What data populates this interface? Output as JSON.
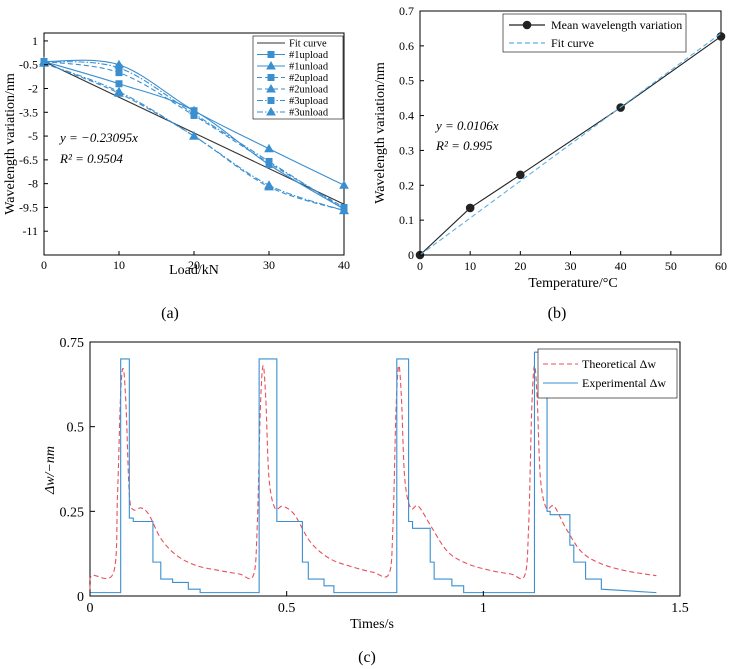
{
  "chart_data": [
    {
      "type": "line",
      "panel_label": "(a)",
      "xlabel": "Load/kN",
      "ylabel": "Wavelength variation/nm",
      "xlim": [
        0,
        40
      ],
      "ylim": [
        -12.5,
        1.5
      ],
      "x_ticks": [
        0,
        10,
        20,
        30,
        40
      ],
      "y_ticks": [
        1,
        -0.5,
        -2,
        -3.5,
        -5,
        -6.5,
        -8,
        -9.5,
        -11
      ],
      "y_tick_labels": [
        "1",
        "-0.5",
        "-2",
        "-3.5",
        "-5",
        "-6.5",
        "-8",
        "-9.5",
        "-11"
      ],
      "annotation_equation": "y = −0.23095x",
      "annotation_r2": "R² = 0.9504",
      "series": [
        {
          "name": "Fit curve",
          "style": "solid",
          "marker": "none",
          "color": "#333333",
          "x": [
            0,
            40
          ],
          "y": [
            -0.3,
            -9.3
          ]
        },
        {
          "name": "#1upload",
          "style": "solid",
          "marker": "square",
          "color": "#3a8fd0",
          "x": [
            0,
            10,
            20,
            30,
            40
          ],
          "y": [
            -0.3,
            -1.7,
            -3.4,
            -6.8,
            -9.6
          ]
        },
        {
          "name": "#1unload",
          "style": "solid",
          "marker": "triangle",
          "color": "#3a8fd0",
          "x": [
            0,
            10,
            20,
            30,
            40
          ],
          "y": [
            -0.3,
            -0.5,
            -3.4,
            -5.8,
            -8.1
          ]
        },
        {
          "name": "#2upload",
          "style": "dash",
          "marker": "square",
          "color": "#3a8fd0",
          "x": [
            0,
            10,
            20,
            30,
            40
          ],
          "y": [
            -0.3,
            -1.0,
            -3.7,
            -6.7,
            -9.5
          ]
        },
        {
          "name": "#2unload",
          "style": "dash",
          "marker": "triangle",
          "color": "#3a8fd0",
          "x": [
            0,
            10,
            20,
            30,
            40
          ],
          "y": [
            -0.4,
            -2.3,
            -5.0,
            -8.2,
            -9.7
          ]
        },
        {
          "name": "#3upload",
          "style": "dashdot",
          "marker": "square",
          "color": "#3a8fd0",
          "x": [
            0,
            10,
            20,
            30,
            40
          ],
          "y": [
            -0.3,
            -0.7,
            -3.6,
            -6.6,
            -9.6
          ]
        },
        {
          "name": "#3unload",
          "style": "dashdot",
          "marker": "triangle",
          "color": "#3a8fd0",
          "x": [
            0,
            10,
            20,
            30,
            40
          ],
          "y": [
            -0.4,
            -2.2,
            -5.0,
            -8.1,
            -9.7
          ]
        }
      ]
    },
    {
      "type": "line",
      "panel_label": "(b)",
      "xlabel": "Temperature/°C",
      "ylabel": "Wavelength variation/nm",
      "xlim": [
        0,
        60
      ],
      "ylim": [
        0,
        0.7
      ],
      "x_ticks": [
        0,
        10,
        20,
        30,
        40,
        50,
        60
      ],
      "y_ticks": [
        0,
        0.1,
        0.2,
        0.3,
        0.4,
        0.5,
        0.6,
        0.7
      ],
      "annotation_equation": "y = 0.0106x",
      "annotation_r2": "R² = 0.995",
      "series": [
        {
          "name": "Mean wavelength variation",
          "style": "solid",
          "marker": "circle",
          "color": "#222222",
          "x": [
            0,
            10,
            20,
            40,
            60
          ],
          "y": [
            0,
            0.135,
            0.23,
            0.423,
            0.627
          ]
        },
        {
          "name": "Fit curve",
          "style": "dash",
          "marker": "none",
          "color": "#5ab1e6",
          "x": [
            0,
            60
          ],
          "y": [
            0,
            0.636
          ]
        }
      ]
    },
    {
      "type": "line",
      "panel_label": "(c)",
      "xlabel": "Times/s",
      "ylabel": "Δw/−nm",
      "xlim": [
        0,
        1.5
      ],
      "ylim": [
        0,
        0.75
      ],
      "x_ticks": [
        0,
        0.5,
        1,
        1.5
      ],
      "x_tick_labels": [
        "0",
        "0.5",
        "1",
        "1.5"
      ],
      "y_ticks": [
        0,
        0.25,
        0.5,
        0.75
      ],
      "y_tick_labels": [
        "0",
        "0.25",
        "0.5",
        "0.75"
      ],
      "legend": [
        "Theoretical Δw",
        "Experimental Δw"
      ],
      "series": [
        {
          "name": "Theoretical Δw",
          "style": "dash",
          "color": "#e8505b",
          "x": [
            0,
            0.005,
            0.06,
            0.07,
            0.078,
            0.085,
            0.092,
            0.1,
            0.11,
            0.13,
            0.15,
            0.18,
            0.22,
            0.27,
            0.33,
            0.38,
            0.415,
            0.425,
            0.433,
            0.44,
            0.447,
            0.455,
            0.47,
            0.49,
            0.52,
            0.56,
            0.61,
            0.67,
            0.72,
            0.76,
            0.77,
            0.778,
            0.785,
            0.792,
            0.8,
            0.815,
            0.835,
            0.87,
            0.91,
            0.96,
            1.02,
            1.07,
            1.105,
            1.115,
            1.123,
            1.13,
            1.137,
            1.145,
            1.16,
            1.18,
            1.21,
            1.25,
            1.3,
            1.36,
            1.41,
            1.44
          ],
          "y": [
            0.02,
            0.06,
            0.07,
            0.3,
            0.6,
            0.67,
            0.55,
            0.3,
            0.255,
            0.26,
            0.24,
            0.17,
            0.12,
            0.09,
            0.075,
            0.065,
            0.06,
            0.2,
            0.55,
            0.68,
            0.58,
            0.35,
            0.26,
            0.265,
            0.24,
            0.16,
            0.11,
            0.085,
            0.07,
            0.065,
            0.2,
            0.55,
            0.68,
            0.58,
            0.35,
            0.26,
            0.265,
            0.2,
            0.13,
            0.095,
            0.075,
            0.065,
            0.06,
            0.2,
            0.55,
            0.68,
            0.58,
            0.35,
            0.26,
            0.265,
            0.2,
            0.13,
            0.095,
            0.075,
            0.065,
            0.06
          ]
        },
        {
          "name": "Experimental Δw",
          "style": "solid",
          "color": "#3a8fd0",
          "x": [
            0,
            0.078,
            0.078,
            0.086,
            0.086,
            0.1,
            0.1,
            0.11,
            0.11,
            0.16,
            0.16,
            0.18,
            0.18,
            0.21,
            0.21,
            0.25,
            0.25,
            0.28,
            0.28,
            0.43,
            0.43,
            0.437,
            0.437,
            0.475,
            0.475,
            0.485,
            0.485,
            0.54,
            0.54,
            0.555,
            0.555,
            0.595,
            0.595,
            0.62,
            0.62,
            0.78,
            0.78,
            0.79,
            0.79,
            0.81,
            0.81,
            0.82,
            0.82,
            0.865,
            0.865,
            0.875,
            0.875,
            0.92,
            0.92,
            0.95,
            0.95,
            1.13,
            1.13,
            1.137,
            1.137,
            1.162,
            1.162,
            1.17,
            1.17,
            1.22,
            1.22,
            1.23,
            1.23,
            1.26,
            1.26,
            1.3,
            1.3,
            1.44
          ],
          "y": [
            0.01,
            0.01,
            0.7,
            0.7,
            0.7,
            0.7,
            0.23,
            0.23,
            0.22,
            0.22,
            0.1,
            0.1,
            0.05,
            0.05,
            0.04,
            0.04,
            0.02,
            0.02,
            0.01,
            0.01,
            0.7,
            0.7,
            0.7,
            0.7,
            0.22,
            0.22,
            0.22,
            0.22,
            0.1,
            0.1,
            0.05,
            0.05,
            0.03,
            0.03,
            0.01,
            0.01,
            0.7,
            0.7,
            0.7,
            0.7,
            0.22,
            0.22,
            0.2,
            0.2,
            0.1,
            0.1,
            0.05,
            0.05,
            0.03,
            0.03,
            0.01,
            0.01,
            0.72,
            0.72,
            0.72,
            0.72,
            0.25,
            0.25,
            0.24,
            0.24,
            0.15,
            0.15,
            0.1,
            0.1,
            0.05,
            0.05,
            0.02,
            0.01
          ]
        }
      ]
    }
  ]
}
